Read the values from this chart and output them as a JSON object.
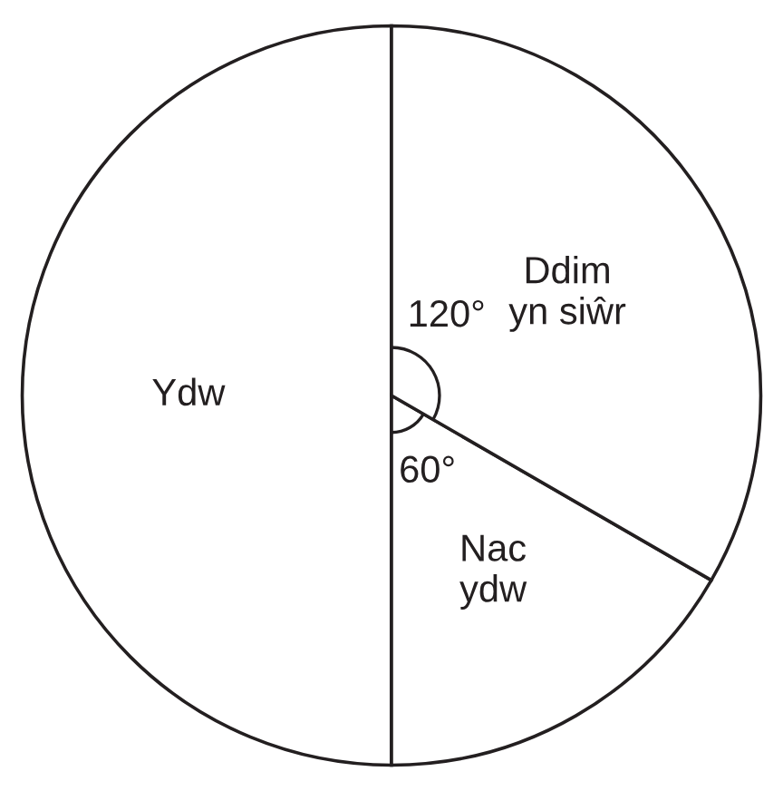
{
  "chart_data": {
    "type": "pie",
    "categories": [
      "Ydw",
      "Nac\nydw",
      "Ddim\nyn siŵr"
    ],
    "values": [
      50,
      16.67,
      33.33
    ],
    "colors": [
      "#ffffff",
      "#ffffff",
      "#ffffff"
    ],
    "annotations": [
      "120°",
      "60°"
    ]
  }
}
